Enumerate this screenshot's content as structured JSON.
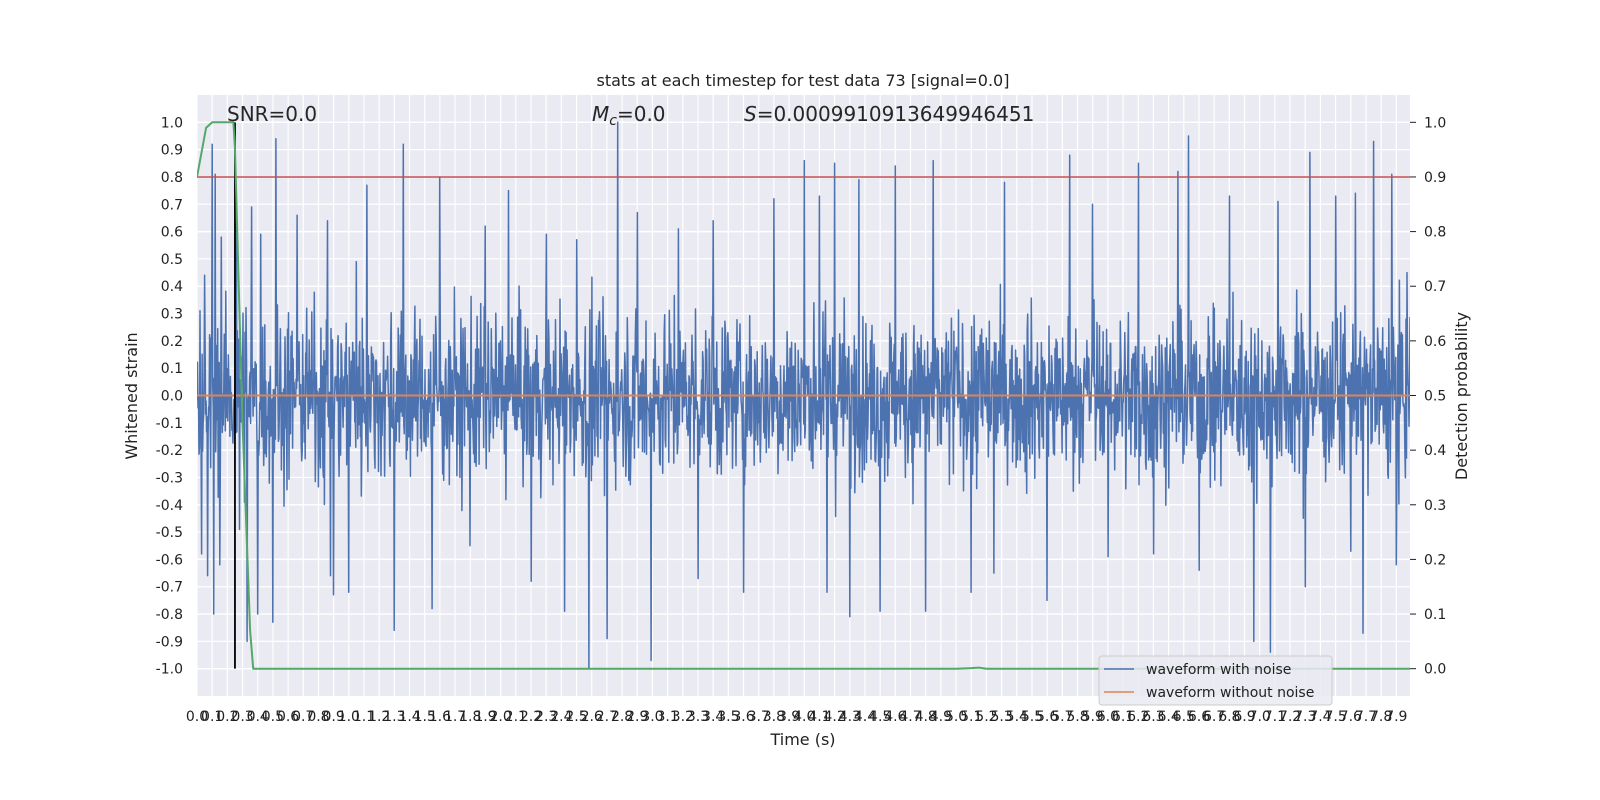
{
  "chart_data": {
    "type": "line",
    "title": "stats at each timestep for test data 73 [signal=0.0]",
    "xlabel": "Time (s)",
    "ylabel": "Whitened strain",
    "y2label": "Detection probability",
    "xlim": [
      0.0,
      7.99
    ],
    "ylim": [
      -1.1,
      1.1
    ],
    "y2lim": [
      -0.05,
      1.05
    ],
    "yticks": [
      "1.0",
      "0.9",
      "0.8",
      "0.7",
      "0.6",
      "0.5",
      "0.4",
      "0.3",
      "0.2",
      "0.1",
      "0.0",
      "-0.1",
      "-0.2",
      "-0.3",
      "-0.4",
      "-0.5",
      "-0.6",
      "-0.7",
      "-0.8",
      "-0.9",
      "-1.0"
    ],
    "y2ticks": [
      "1.0",
      "0.9",
      "0.8",
      "0.7",
      "0.6",
      "0.5",
      "0.4",
      "0.3",
      "0.2",
      "0.1",
      "0.0"
    ],
    "xticks": [
      "0.0",
      "0.1",
      "0.2",
      "0.3",
      "0.4",
      "0.5",
      "0.6",
      "0.7",
      "0.8",
      "0.9",
      "1.0",
      "1.1",
      "1.2",
      "1.3",
      "1.4",
      "1.5",
      "1.6",
      "1.7",
      "1.8",
      "1.9",
      "2.0",
      "2.1",
      "2.2",
      "2.3",
      "2.4",
      "2.5",
      "2.6",
      "2.7",
      "2.8",
      "2.9",
      "3.0",
      "3.1",
      "3.2",
      "3.3",
      "3.4",
      "3.5",
      "3.6",
      "3.7",
      "3.8",
      "3.9",
      "4.0",
      "4.1",
      "4.2",
      "4.3",
      "4.4",
      "4.5",
      "4.6",
      "4.7",
      "4.8",
      "4.9",
      "5.0",
      "5.1",
      "5.2",
      "5.3",
      "5.4",
      "5.5",
      "5.6",
      "5.7",
      "5.8",
      "5.9",
      "6.0",
      "6.1",
      "6.2",
      "6.3",
      "6.4",
      "6.5",
      "6.6",
      "6.7",
      "6.8",
      "6.9",
      "7.0",
      "7.1",
      "7.2",
      "7.3",
      "7.4",
      "7.5",
      "7.6",
      "7.7",
      "7.8",
      "7.9"
    ],
    "annotations": {
      "snr": "SNR=0.0",
      "mc_symbol": "M",
      "mc_sub": "c",
      "mc_value": "=0.0",
      "s_symbol": "S",
      "s_value": "=0.0009910913649946451"
    },
    "threshold": {
      "value": 0.8,
      "color": "#c44e52"
    },
    "marker_time": 0.25,
    "series": [
      {
        "name": "waveform with noise",
        "color": "#4c72b0",
        "axis": "left",
        "noise_sigma": 0.15,
        "peaks": [
          [
            0.02,
            0.31
          ],
          [
            0.05,
            0.44
          ],
          [
            0.1,
            0.92
          ],
          [
            0.12,
            0.81
          ],
          [
            0.16,
            0.58
          ],
          [
            0.26,
            0.63
          ],
          [
            0.36,
            0.69
          ],
          [
            0.42,
            0.59
          ],
          [
            0.52,
            0.94
          ],
          [
            0.66,
            0.66
          ],
          [
            0.86,
            0.64
          ],
          [
            1.05,
            0.49
          ],
          [
            1.12,
            0.77
          ],
          [
            1.36,
            0.92
          ],
          [
            1.6,
            0.8
          ],
          [
            1.9,
            0.62
          ],
          [
            2.05,
            0.75
          ],
          [
            2.3,
            0.59
          ],
          [
            2.5,
            0.57
          ],
          [
            2.7,
            0.68
          ],
          [
            2.77,
            1.0
          ],
          [
            2.9,
            0.67
          ],
          [
            3.17,
            0.61
          ],
          [
            3.4,
            0.64
          ],
          [
            3.6,
            0.56
          ],
          [
            3.8,
            0.72
          ],
          [
            4.0,
            0.86
          ],
          [
            4.1,
            0.73
          ],
          [
            4.2,
            0.85
          ],
          [
            4.36,
            0.79
          ],
          [
            4.6,
            0.84
          ],
          [
            4.85,
            0.86
          ],
          [
            5.1,
            0.58
          ],
          [
            5.32,
            0.78
          ],
          [
            5.6,
            0.63
          ],
          [
            5.75,
            0.88
          ],
          [
            5.9,
            0.7
          ],
          [
            6.2,
            0.85
          ],
          [
            6.46,
            0.82
          ],
          [
            6.53,
            0.95
          ],
          [
            6.8,
            0.73
          ],
          [
            7.12,
            0.71
          ],
          [
            7.33,
            0.89
          ],
          [
            7.5,
            0.73
          ],
          [
            7.63,
            0.74
          ],
          [
            7.75,
            0.93
          ],
          [
            7.87,
            0.81
          ],
          [
            7.97,
            0.45
          ]
        ],
        "troughs": [
          [
            0.03,
            -0.58
          ],
          [
            0.07,
            -0.66
          ],
          [
            0.11,
            -0.8
          ],
          [
            0.15,
            -0.62
          ],
          [
            0.28,
            -0.49
          ],
          [
            0.33,
            -0.9
          ],
          [
            0.4,
            -0.8
          ],
          [
            0.5,
            -0.83
          ],
          [
            0.88,
            -0.66
          ],
          [
            0.9,
            -0.73
          ],
          [
            1.0,
            -0.72
          ],
          [
            1.3,
            -0.86
          ],
          [
            1.55,
            -0.78
          ],
          [
            1.8,
            -0.55
          ],
          [
            2.2,
            -0.68
          ],
          [
            2.42,
            -0.79
          ],
          [
            2.58,
            -1.0
          ],
          [
            2.7,
            -0.89
          ],
          [
            2.99,
            -0.97
          ],
          [
            3.3,
            -0.67
          ],
          [
            3.6,
            -0.72
          ],
          [
            4.15,
            -0.72
          ],
          [
            4.3,
            -0.81
          ],
          [
            4.5,
            -0.79
          ],
          [
            4.8,
            -0.79
          ],
          [
            5.1,
            -0.72
          ],
          [
            5.25,
            -0.65
          ],
          [
            5.6,
            -0.75
          ],
          [
            6.0,
            -0.59
          ],
          [
            6.3,
            -0.58
          ],
          [
            6.6,
            -0.64
          ],
          [
            6.96,
            -0.9
          ],
          [
            7.07,
            -0.94
          ],
          [
            7.3,
            -0.7
          ],
          [
            7.6,
            -0.57
          ],
          [
            7.68,
            -0.87
          ],
          [
            7.9,
            -0.62
          ]
        ]
      },
      {
        "name": "waveform without noise",
        "color": "#dd8452",
        "axis": "left",
        "x": [
          0.0,
          7.99
        ],
        "y": [
          0.0,
          0.0
        ]
      },
      {
        "name": "detection probability",
        "color": "#55a868",
        "axis": "right",
        "x": [
          0.0,
          0.06,
          0.1,
          0.15,
          0.2,
          0.24,
          0.25,
          0.3,
          0.35,
          0.37,
          0.5,
          1.0,
          2.0,
          3.0,
          4.0,
          5.0,
          5.1,
          5.15,
          5.2,
          6.0,
          7.0,
          7.99
        ],
        "y": [
          0.9,
          0.99,
          1.0,
          1.0,
          1.0,
          1.0,
          0.95,
          0.45,
          0.07,
          0.0,
          0.0,
          0.0,
          0.0,
          0.0,
          0.0,
          0.0,
          0.001,
          0.002,
          0.0,
          0.0,
          0.0,
          0.0
        ]
      }
    ]
  }
}
